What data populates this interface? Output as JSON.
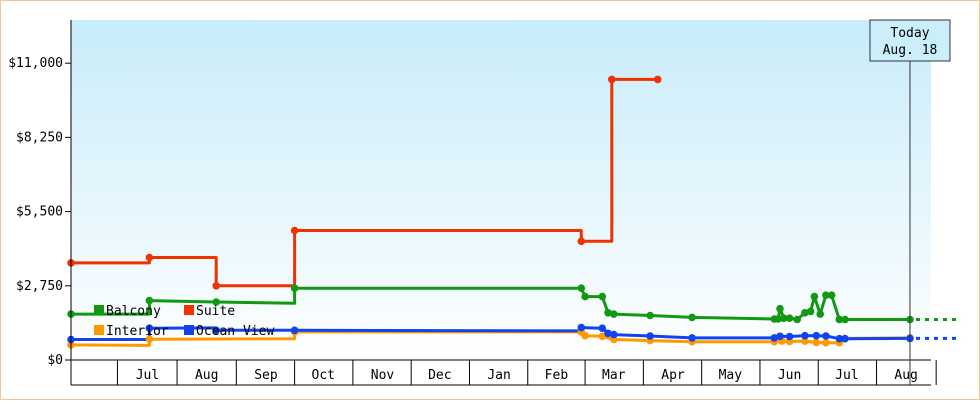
{
  "chart_data": {
    "type": "line",
    "title": "",
    "xlabel": "",
    "ylabel": "",
    "ylim": [
      0,
      12600
    ],
    "y_ticks": [
      {
        "value": 0,
        "label": "$0"
      },
      {
        "value": 2750,
        "label": "$2,750"
      },
      {
        "value": 5500,
        "label": "$5,500"
      },
      {
        "value": 8250,
        "label": "$8,250"
      },
      {
        "value": 11000,
        "label": "$11,000"
      }
    ],
    "x_range": [
      "2023-06-06",
      "2024-08-29"
    ],
    "month_labels": [
      {
        "label": "Jul",
        "date": "2023-07-16"
      },
      {
        "label": "Aug",
        "date": "2023-08-16"
      },
      {
        "label": "Sep",
        "date": "2023-09-16"
      },
      {
        "label": "Oct",
        "date": "2023-10-16"
      },
      {
        "label": "Nov",
        "date": "2023-11-16"
      },
      {
        "label": "Dec",
        "date": "2023-12-16"
      },
      {
        "label": "Jan",
        "date": "2024-01-16"
      },
      {
        "label": "Feb",
        "date": "2024-02-15"
      },
      {
        "label": "Mar",
        "date": "2024-03-16"
      },
      {
        "label": "Apr",
        "date": "2024-04-16"
      },
      {
        "label": "May",
        "date": "2024-05-16"
      },
      {
        "label": "Jun",
        "date": "2024-06-16"
      },
      {
        "label": "Jul",
        "date": "2024-07-16"
      },
      {
        "label": "Aug",
        "date": "2024-08-16"
      }
    ],
    "today": {
      "line1": "Today",
      "line2": "Aug. 18",
      "date": "2024-08-18"
    },
    "grid": false,
    "legend_position": "bottom-left",
    "series": [
      {
        "name": "Balcony",
        "color": "#119911",
        "points": [
          [
            "2023-06-06",
            1700
          ],
          [
            "2023-07-17",
            1700
          ],
          [
            "2023-07-17",
            2200
          ],
          [
            "2023-08-21",
            2150
          ],
          [
            "2023-10-01",
            2100
          ],
          [
            "2023-10-01",
            2660
          ],
          [
            "2024-02-28",
            2660
          ],
          [
            "2024-03-01",
            2350
          ],
          [
            "2024-03-10",
            2350
          ],
          [
            "2024-03-13",
            1750
          ],
          [
            "2024-03-16",
            1700
          ],
          [
            "2024-04-04",
            1650
          ],
          [
            "2024-04-26",
            1580
          ],
          [
            "2024-06-08",
            1520
          ],
          [
            "2024-06-10",
            1520
          ],
          [
            "2024-06-11",
            1900
          ],
          [
            "2024-06-13",
            1550
          ],
          [
            "2024-06-16",
            1550
          ],
          [
            "2024-06-20",
            1500
          ],
          [
            "2024-06-24",
            1750
          ],
          [
            "2024-06-27",
            1800
          ],
          [
            "2024-06-29",
            2350
          ],
          [
            "2024-07-02",
            1700
          ],
          [
            "2024-07-05",
            2400
          ],
          [
            "2024-07-08",
            2400
          ],
          [
            "2024-07-12",
            1500
          ],
          [
            "2024-07-15",
            1500
          ],
          [
            "2024-08-18",
            1500
          ]
        ]
      },
      {
        "name": "Suite",
        "color": "#ee3300",
        "points": [
          [
            "2023-06-06",
            3600
          ],
          [
            "2023-07-17",
            3600
          ],
          [
            "2023-07-17",
            3800
          ],
          [
            "2023-08-21",
            3800
          ],
          [
            "2023-08-21",
            2750
          ],
          [
            "2023-10-01",
            2750
          ],
          [
            "2023-10-01",
            4800
          ],
          [
            "2024-02-28",
            4800
          ],
          [
            "2024-02-28",
            4400
          ],
          [
            "2024-03-15",
            4400
          ],
          [
            "2024-03-15",
            10400
          ],
          [
            "2024-04-08",
            10400
          ]
        ]
      },
      {
        "name": "Interior",
        "color": "#ff9900",
        "points": [
          [
            "2023-06-06",
            560
          ],
          [
            "2023-07-17",
            540
          ],
          [
            "2023-07-17",
            770
          ],
          [
            "2023-10-01",
            790
          ],
          [
            "2023-10-01",
            1040
          ],
          [
            "2024-02-28",
            1040
          ],
          [
            "2024-03-01",
            900
          ],
          [
            "2024-03-10",
            880
          ],
          [
            "2024-03-16",
            760
          ],
          [
            "2024-04-04",
            720
          ],
          [
            "2024-04-26",
            680
          ],
          [
            "2024-06-08",
            680
          ],
          [
            "2024-06-12",
            700
          ],
          [
            "2024-06-16",
            690
          ],
          [
            "2024-06-24",
            700
          ],
          [
            "2024-06-30",
            650
          ],
          [
            "2024-07-05",
            640
          ],
          [
            "2024-07-12",
            640
          ],
          [
            "2024-07-15",
            800
          ],
          [
            "2024-08-18",
            820
          ]
        ]
      },
      {
        "name": "Ocean View",
        "color": "#1144ee",
        "points": [
          [
            "2023-06-06",
            760
          ],
          [
            "2023-07-17",
            760
          ],
          [
            "2023-07-17",
            1180
          ],
          [
            "2023-08-21",
            1190
          ],
          [
            "2023-08-21",
            1100
          ],
          [
            "2023-10-01",
            1100
          ],
          [
            "2024-02-28",
            1080
          ],
          [
            "2024-02-28",
            1200
          ],
          [
            "2024-03-10",
            1180
          ],
          [
            "2024-03-13",
            990
          ],
          [
            "2024-03-16",
            940
          ],
          [
            "2024-04-04",
            890
          ],
          [
            "2024-04-26",
            820
          ],
          [
            "2024-06-08",
            820
          ],
          [
            "2024-06-11",
            880
          ],
          [
            "2024-06-16",
            870
          ],
          [
            "2024-06-24",
            900
          ],
          [
            "2024-06-30",
            900
          ],
          [
            "2024-07-05",
            890
          ],
          [
            "2024-07-12",
            790
          ],
          [
            "2024-07-15",
            790
          ],
          [
            "2024-08-18",
            800
          ]
        ]
      }
    ],
    "markers": {
      "Balcony": [
        "2023-06-06",
        "2023-07-17",
        "2023-08-21",
        "2023-10-01",
        "2024-02-28",
        "2024-03-01",
        "2024-03-10",
        "2024-03-13",
        "2024-03-16",
        "2024-04-04",
        "2024-04-26",
        "2024-06-08",
        "2024-06-10",
        "2024-06-11",
        "2024-06-13",
        "2024-06-16",
        "2024-06-20",
        "2024-06-24",
        "2024-06-27",
        "2024-06-29",
        "2024-07-02",
        "2024-07-05",
        "2024-07-08",
        "2024-07-12",
        "2024-07-15",
        "2024-08-18"
      ],
      "Suite": [
        "2023-06-06",
        "2023-07-17",
        "2023-08-21",
        "2023-10-01",
        "2024-02-28",
        "2024-03-15",
        "2024-04-08"
      ],
      "Interior": [
        "2023-06-06",
        "2023-07-17",
        "2023-10-01",
        "2024-02-28",
        "2024-03-01",
        "2024-03-10",
        "2024-03-16",
        "2024-04-04",
        "2024-04-26",
        "2024-06-08",
        "2024-06-12",
        "2024-06-16",
        "2024-06-24",
        "2024-06-30",
        "2024-07-05",
        "2024-07-12",
        "2024-07-15",
        "2024-08-18"
      ],
      "Ocean View": [
        "2023-06-06",
        "2023-07-17",
        "2023-08-21",
        "2023-10-01",
        "2024-02-28",
        "2024-03-10",
        "2024-03-13",
        "2024-03-16",
        "2024-04-04",
        "2024-04-26",
        "2024-06-08",
        "2024-06-11",
        "2024-06-16",
        "2024-06-24",
        "2024-06-30",
        "2024-07-05",
        "2024-07-12",
        "2024-07-15",
        "2024-08-18"
      ]
    },
    "projection_series": [
      "Balcony",
      "Ocean View"
    ],
    "colors": {
      "plot_top": "#c8ecfa",
      "plot_bottom": "#ffffff",
      "axis": "#000000",
      "frame": "#f0c890"
    }
  }
}
